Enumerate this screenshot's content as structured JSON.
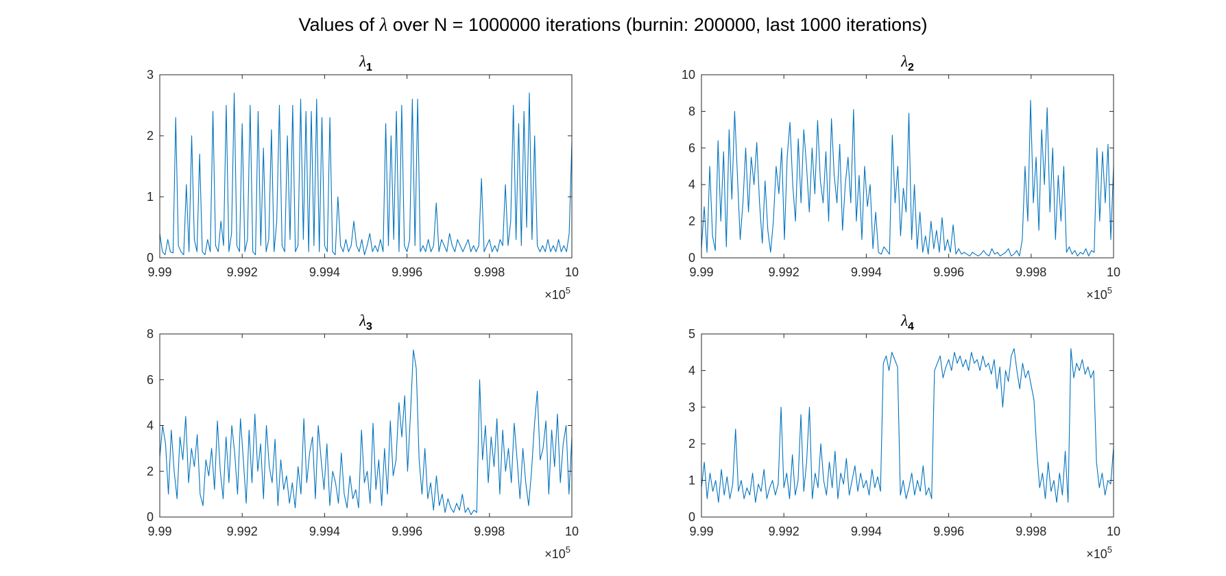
{
  "figure": {
    "title_prefix": "Values of ",
    "title_symbol": "λ",
    "title_suffix": " over N = 1000000 iterations (burnin: 200000, last 1000 iterations)"
  },
  "colors": {
    "line": "#0072BD",
    "axis": "#262626",
    "background": "#ffffff"
  },
  "chart_data": [
    {
      "type": "line",
      "title_symbol": "λ",
      "title_subscript": "1",
      "xlabel": "",
      "ylabel": "",
      "x_multiplier_label": "×10",
      "x_multiplier_exp": "5",
      "xlim": [
        9.99,
        10
      ],
      "ylim": [
        0,
        3
      ],
      "xticks": [
        9.99,
        9.992,
        9.994,
        9.996,
        9.998,
        10
      ],
      "xtick_labels": [
        "9.99",
        "9.992",
        "9.994",
        "9.996",
        "9.998",
        "10"
      ],
      "yticks": [
        0,
        1,
        2,
        3
      ],
      "ytick_labels": [
        "0",
        "1",
        "2",
        "3"
      ],
      "grid": false,
      "series": [
        {
          "x_start": 9.99,
          "x_end": 10,
          "values": [
            0.4,
            0.1,
            0.05,
            0.3,
            0.1,
            0.08,
            2.3,
            0.2,
            0.1,
            0.05,
            1.2,
            0.1,
            2.0,
            0.3,
            0.1,
            1.7,
            0.1,
            0.05,
            0.3,
            0.1,
            2.4,
            0.2,
            0.1,
            0.6,
            0.2,
            2.5,
            0.1,
            0.4,
            2.7,
            0.2,
            0.1,
            2.2,
            0.1,
            0.3,
            2.5,
            0.1,
            0.05,
            2.4,
            0.2,
            1.8,
            0.1,
            0.3,
            2.1,
            0.1,
            0.6,
            2.5,
            0.2,
            0.1,
            2.0,
            0.3,
            2.5,
            0.1,
            0.2,
            2.6,
            0.3,
            2.4,
            0.1,
            2.4,
            0.2,
            2.6,
            0.1,
            2.3,
            0.2,
            0.1,
            2.3,
            0.1,
            0.05,
            1.0,
            0.2,
            0.1,
            0.3,
            0.1,
            0.2,
            0.6,
            0.2,
            0.1,
            0.3,
            0.05,
            0.2,
            0.4,
            0.1,
            0.2,
            0.1,
            0.3,
            0.1,
            2.2,
            0.2,
            2.0,
            0.3,
            2.4,
            0.1,
            2.5,
            0.2,
            0.1,
            0.3,
            2.6,
            0.2,
            2.6,
            0.1,
            0.2,
            0.1,
            0.3,
            0.1,
            0.2,
            0.9,
            0.1,
            0.3,
            0.2,
            0.1,
            0.4,
            0.2,
            0.1,
            0.3,
            0.2,
            0.1,
            0.2,
            0.3,
            0.1,
            0.2,
            0.1,
            0.2,
            1.3,
            0.1,
            0.2,
            0.3,
            0.1,
            0.2,
            0.1,
            0.3,
            0.2,
            1.2,
            0.2,
            0.6,
            2.5,
            0.3,
            2.2,
            0.2,
            2.4,
            0.5,
            2.7,
            0.3,
            2.0,
            0.2,
            0.1,
            0.2,
            0.1,
            0.3,
            0.1,
            0.2,
            0.1,
            0.3,
            0.1,
            0.2,
            0.1,
            0.4,
            1.9
          ]
        }
      ]
    },
    {
      "type": "line",
      "title_symbol": "λ",
      "title_subscript": "2",
      "xlabel": "",
      "ylabel": "",
      "x_multiplier_label": "×10",
      "x_multiplier_exp": "5",
      "xlim": [
        9.99,
        10
      ],
      "ylim": [
        0,
        10
      ],
      "xticks": [
        9.99,
        9.992,
        9.994,
        9.996,
        9.998,
        10
      ],
      "xtick_labels": [
        "9.99",
        "9.992",
        "9.994",
        "9.996",
        "9.998",
        "10"
      ],
      "yticks": [
        0,
        2,
        4,
        6,
        8,
        10
      ],
      "ytick_labels": [
        "0",
        "2",
        "4",
        "6",
        "8",
        "10"
      ],
      "grid": false,
      "series": [
        {
          "x_start": 9.99,
          "x_end": 10,
          "values": [
            0.5,
            2.8,
            0.3,
            5.0,
            1.2,
            0.4,
            6.4,
            2.0,
            5.8,
            0.6,
            7.0,
            3.2,
            8.0,
            4.5,
            1.0,
            3.0,
            6.0,
            2.5,
            5.5,
            4.0,
            6.3,
            3.0,
            0.8,
            4.2,
            1.5,
            0.3,
            2.0,
            5.0,
            3.5,
            6.0,
            1.0,
            5.5,
            7.4,
            4.0,
            2.0,
            6.5,
            3.0,
            7.0,
            5.0,
            2.5,
            6.0,
            3.5,
            7.5,
            4.2,
            3.0,
            5.8,
            2.0,
            7.6,
            4.5,
            3.0,
            6.2,
            1.5,
            4.0,
            5.5,
            3.0,
            8.1,
            2.0,
            4.5,
            1.0,
            5.0,
            2.8,
            4.0,
            0.5,
            2.5,
            0.3,
            0.2,
            0.6,
            0.4,
            0.2,
            6.7,
            3.0,
            5.0,
            1.2,
            3.8,
            2.5,
            7.9,
            1.0,
            4.0,
            0.5,
            2.5,
            0.3,
            1.2,
            0.2,
            2.0,
            0.5,
            1.5,
            0.3,
            2.2,
            0.4,
            1.0,
            0.3,
            1.8,
            0.2,
            0.5,
            0.2,
            0.3,
            0.2,
            0.1,
            0.3,
            0.2,
            0.1,
            0.2,
            0.4,
            0.2,
            0.1,
            0.5,
            0.2,
            0.3,
            0.1,
            0.2,
            0.3,
            0.5,
            0.1,
            0.2,
            0.4,
            0.1,
            1.0,
            5.0,
            2.0,
            8.6,
            3.0,
            5.5,
            1.5,
            7.0,
            4.0,
            8.2,
            2.5,
            6.0,
            1.0,
            4.5,
            2.0,
            5.0,
            0.3,
            0.6,
            0.2,
            0.4,
            0.1,
            0.3,
            0.2,
            0.5,
            0.1,
            0.4,
            0.3,
            6.0,
            2.0,
            5.8,
            3.0,
            6.2,
            1.0,
            5.0
          ]
        }
      ]
    },
    {
      "type": "line",
      "title_symbol": "λ",
      "title_subscript": "3",
      "xlabel": "",
      "ylabel": "",
      "x_multiplier_label": "×10",
      "x_multiplier_exp": "5",
      "xlim": [
        9.99,
        10
      ],
      "ylim": [
        0,
        8
      ],
      "xticks": [
        9.99,
        9.992,
        9.994,
        9.996,
        9.998,
        10
      ],
      "xtick_labels": [
        "9.99",
        "9.992",
        "9.994",
        "9.996",
        "9.998",
        "10"
      ],
      "yticks": [
        0,
        2,
        4,
        6,
        8
      ],
      "ytick_labels": [
        "0",
        "2",
        "4",
        "6",
        "8"
      ],
      "grid": false,
      "series": [
        {
          "x_start": 9.99,
          "x_end": 10,
          "values": [
            2.6,
            4.0,
            3.2,
            1.0,
            3.8,
            2.0,
            0.8,
            3.5,
            2.5,
            4.4,
            1.5,
            3.0,
            2.2,
            3.6,
            1.0,
            0.5,
            2.5,
            1.8,
            3.0,
            1.2,
            4.2,
            2.0,
            0.8,
            3.5,
            1.5,
            4.0,
            2.8,
            1.0,
            4.3,
            2.5,
            0.6,
            3.8,
            1.5,
            4.5,
            2.0,
            3.2,
            0.8,
            4.0,
            2.2,
            1.5,
            3.4,
            0.5,
            2.5,
            1.2,
            1.8,
            0.6,
            1.5,
            0.4,
            2.2,
            1.0,
            4.3,
            1.5,
            2.8,
            3.5,
            0.8,
            4.0,
            2.5,
            1.2,
            3.2,
            0.5,
            2.0,
            1.5,
            0.6,
            2.8,
            1.0,
            0.4,
            1.8,
            0.8,
            1.2,
            0.4,
            3.8,
            1.5,
            2.0,
            0.6,
            4.1,
            1.2,
            2.5,
            0.5,
            3.0,
            1.0,
            4.2,
            1.8,
            2.5,
            5.0,
            3.5,
            5.3,
            2.0,
            4.5,
            7.3,
            6.5,
            2.5,
            1.0,
            3.0,
            0.8,
            1.5,
            0.3,
            1.8,
            0.5,
            1.0,
            0.2,
            0.8,
            0.4,
            0.2,
            0.6,
            0.3,
            1.0,
            0.2,
            0.4,
            0.1,
            0.3,
            0.2,
            6.0,
            2.5,
            4.0,
            1.5,
            3.5,
            2.2,
            4.3,
            1.0,
            3.8,
            2.0,
            3.0,
            1.5,
            4.1,
            2.5,
            0.8,
            3.0,
            1.5,
            0.5,
            2.0,
            4.0,
            5.5,
            2.5,
            3.0,
            4.2,
            1.0,
            3.8,
            2.2,
            4.5,
            1.5,
            3.2,
            4.0,
            1.0,
            3.5
          ]
        }
      ]
    },
    {
      "type": "line",
      "title_symbol": "λ",
      "title_subscript": "4",
      "xlabel": "",
      "ylabel": "",
      "x_multiplier_label": "×10",
      "x_multiplier_exp": "5",
      "xlim": [
        9.99,
        10
      ],
      "ylim": [
        0,
        5
      ],
      "xticks": [
        9.99,
        9.992,
        9.994,
        9.996,
        9.998,
        10
      ],
      "xtick_labels": [
        "9.99",
        "9.992",
        "9.994",
        "9.996",
        "9.998",
        "10"
      ],
      "yticks": [
        0,
        1,
        2,
        3,
        4,
        5
      ],
      "ytick_labels": [
        "0",
        "1",
        "2",
        "3",
        "4",
        "5"
      ],
      "grid": false,
      "series": [
        {
          "x_start": 9.99,
          "x_end": 10,
          "values": [
            0.8,
            1.5,
            0.5,
            1.2,
            0.7,
            1.0,
            0.4,
            1.3,
            0.6,
            1.1,
            0.5,
            0.9,
            2.4,
            0.7,
            1.0,
            0.5,
            0.8,
            0.6,
            1.2,
            0.4,
            0.9,
            0.7,
            1.3,
            0.5,
            0.8,
            1.0,
            0.6,
            0.9,
            3.0,
            0.8,
            1.2,
            0.5,
            1.7,
            0.6,
            1.0,
            2.8,
            0.7,
            1.5,
            3.0,
            0.5,
            1.2,
            0.8,
            2.0,
            1.0,
            0.6,
            1.5,
            0.8,
            1.8,
            0.5,
            1.2,
            0.9,
            1.6,
            0.6,
            1.0,
            1.4,
            0.7,
            1.2,
            0.8,
            1.0,
            0.6,
            1.3,
            0.8,
            1.1,
            0.7,
            4.2,
            4.4,
            4.0,
            4.5,
            4.3,
            4.1,
            0.6,
            1.0,
            0.5,
            0.8,
            1.2,
            0.6,
            1.0,
            0.7,
            1.4,
            0.6,
            0.8,
            0.5,
            4.0,
            4.2,
            4.4,
            3.8,
            4.1,
            4.3,
            4.0,
            4.5,
            4.2,
            4.4,
            4.1,
            4.3,
            4.0,
            4.5,
            4.2,
            4.3,
            4.0,
            4.4,
            4.1,
            4.2,
            3.9,
            4.3,
            3.5,
            4.1,
            3.0,
            4.0,
            3.7,
            4.4,
            4.6,
            4.0,
            3.5,
            4.2,
            3.8,
            4.0,
            3.6,
            3.2,
            1.8,
            0.8,
            1.2,
            0.5,
            1.5,
            0.7,
            1.0,
            0.4,
            1.2,
            0.6,
            1.8,
            0.4,
            4.6,
            3.8,
            4.2,
            4.0,
            4.3,
            3.9,
            4.1,
            3.8,
            4.0,
            1.5,
            0.8,
            1.2,
            0.6,
            1.0,
            0.9,
            1.9
          ]
        }
      ]
    }
  ]
}
